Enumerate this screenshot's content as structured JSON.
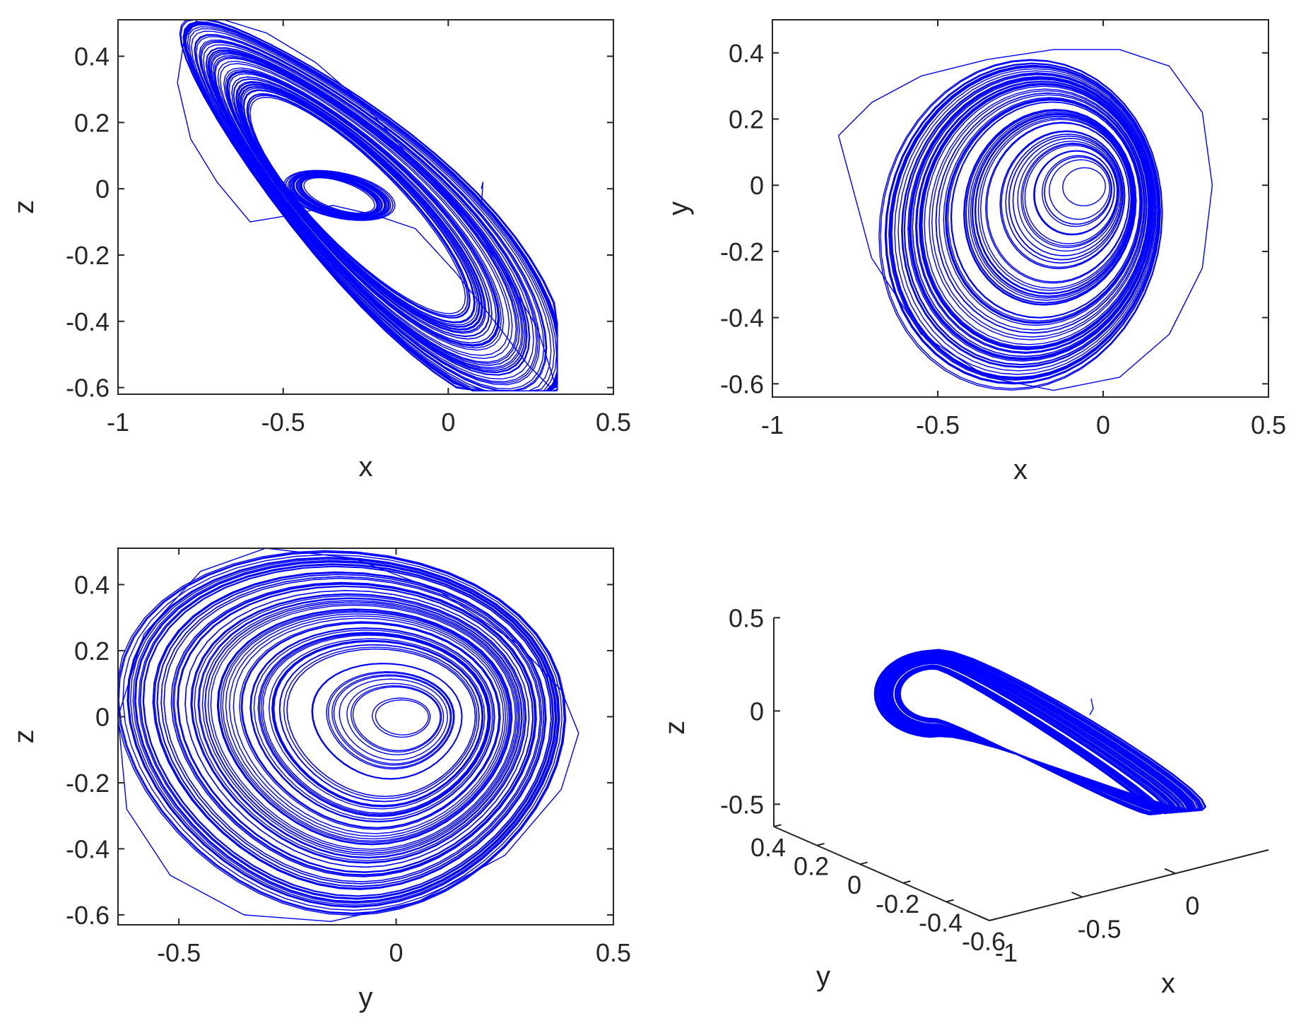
{
  "figure": {
    "line_color": "#0000ff",
    "axis_color": "#262626"
  },
  "chart_data": [
    {
      "type": "line",
      "panel": "x-z projection",
      "xlabel": "x",
      "ylabel": "z",
      "xlim": [
        -1,
        0.5
      ],
      "ylim": [
        -0.62,
        0.51
      ],
      "xticks": [
        -1,
        -0.5,
        0,
        0.5
      ],
      "xtick_labels": [
        "-1",
        "-0.5",
        "0",
        "0.5"
      ],
      "yticks": [
        -0.6,
        -0.4,
        -0.2,
        0,
        0.2,
        0.4
      ],
      "ytick_labels": [
        "-0.6",
        "-0.4",
        "-0.2",
        "0",
        "0.2",
        "0.4"
      ],
      "grid": false,
      "series": [
        {
          "description_points": "approximate attractor envelope",
          "x": [
            -0.76,
            -0.8,
            -0.82,
            -0.78,
            -0.7,
            -0.6,
            -0.48,
            -0.35,
            -0.22,
            -0.1,
            0.02,
            0.14,
            0.24,
            0.31,
            0.32,
            0.27,
            0.15,
            0.02,
            -0.12,
            -0.25,
            -0.4,
            -0.55,
            -0.68,
            -0.76
          ],
          "y": [
            0.51,
            0.45,
            0.32,
            0.15,
            0.02,
            -0.1,
            -0.08,
            -0.05,
            -0.08,
            -0.12,
            -0.25,
            -0.4,
            -0.53,
            -0.6,
            -0.58,
            -0.42,
            -0.22,
            -0.05,
            0.1,
            0.25,
            0.38,
            0.47,
            0.51,
            0.51
          ]
        }
      ]
    },
    {
      "type": "line",
      "panel": "x-y projection",
      "xlabel": "x",
      "ylabel": "y",
      "xlim": [
        -1,
        0.5
      ],
      "ylim": [
        -0.64,
        0.5
      ],
      "xticks": [
        -1,
        -0.5,
        0,
        0.5
      ],
      "xtick_labels": [
        "-1",
        "-0.5",
        "0",
        "0.5"
      ],
      "yticks": [
        -0.6,
        -0.4,
        -0.2,
        0,
        0.2,
        0.4
      ],
      "ytick_labels": [
        "-0.6",
        "-0.4",
        "-0.2",
        "0",
        "0.2",
        "0.4"
      ],
      "grid": false,
      "series": [
        {
          "description_points": "approximate outer orbit",
          "x": [
            -0.8,
            -0.7,
            -0.55,
            -0.35,
            -0.15,
            0.05,
            0.2,
            0.3,
            0.33,
            0.3,
            0.2,
            0.05,
            -0.15,
            -0.35,
            -0.55,
            -0.7,
            -0.8
          ],
          "y": [
            0.15,
            0.25,
            0.33,
            0.38,
            0.41,
            0.41,
            0.36,
            0.22,
            0.0,
            -0.25,
            -0.45,
            -0.58,
            -0.62,
            -0.58,
            -0.45,
            -0.22,
            0.15
          ]
        }
      ]
    },
    {
      "type": "line",
      "panel": "y-z projection",
      "xlabel": "y",
      "ylabel": "z",
      "xlim": [
        -0.64,
        0.5
      ],
      "ylim": [
        -0.63,
        0.51
      ],
      "xticks": [
        -0.5,
        0,
        0.5
      ],
      "xtick_labels": [
        "-0.5",
        "0",
        "0.5"
      ],
      "yticks": [
        -0.6,
        -0.4,
        -0.2,
        0,
        0.2,
        0.4
      ],
      "ytick_labels": [
        "-0.6",
        "-0.4",
        "-0.2",
        "0",
        "0.2",
        "0.4"
      ],
      "grid": false,
      "series": [
        {
          "description_points": "approximate outer orbit",
          "x": [
            -0.3,
            -0.1,
            0.1,
            0.28,
            0.38,
            0.42,
            0.38,
            0.25,
            0.05,
            -0.15,
            -0.35,
            -0.52,
            -0.62,
            -0.64,
            -0.58,
            -0.45,
            -0.3
          ],
          "y": [
            0.51,
            0.48,
            0.38,
            0.22,
            0.08,
            -0.05,
            -0.22,
            -0.42,
            -0.56,
            -0.62,
            -0.6,
            -0.48,
            -0.28,
            0.0,
            0.25,
            0.44,
            0.51
          ]
        }
      ]
    },
    {
      "type": "line",
      "panel": "3D view",
      "xlabel": "x",
      "ylabel": "y",
      "zlabel": "z",
      "xticks": [
        -1,
        -0.5,
        0
      ],
      "xtick_labels": [
        "-1",
        "-0.5",
        "0"
      ],
      "yticks": [
        -0.6,
        -0.4,
        -0.2,
        0,
        0.2,
        0.4
      ],
      "ytick_labels": [
        "-0.6",
        "-0.4",
        "-0.2",
        "0",
        "0.2",
        "0.4"
      ],
      "zticks": [
        -0.5,
        0,
        0.5
      ],
      "ztick_labels": [
        "-0.5",
        "0",
        "0.5"
      ],
      "grid": false
    }
  ]
}
